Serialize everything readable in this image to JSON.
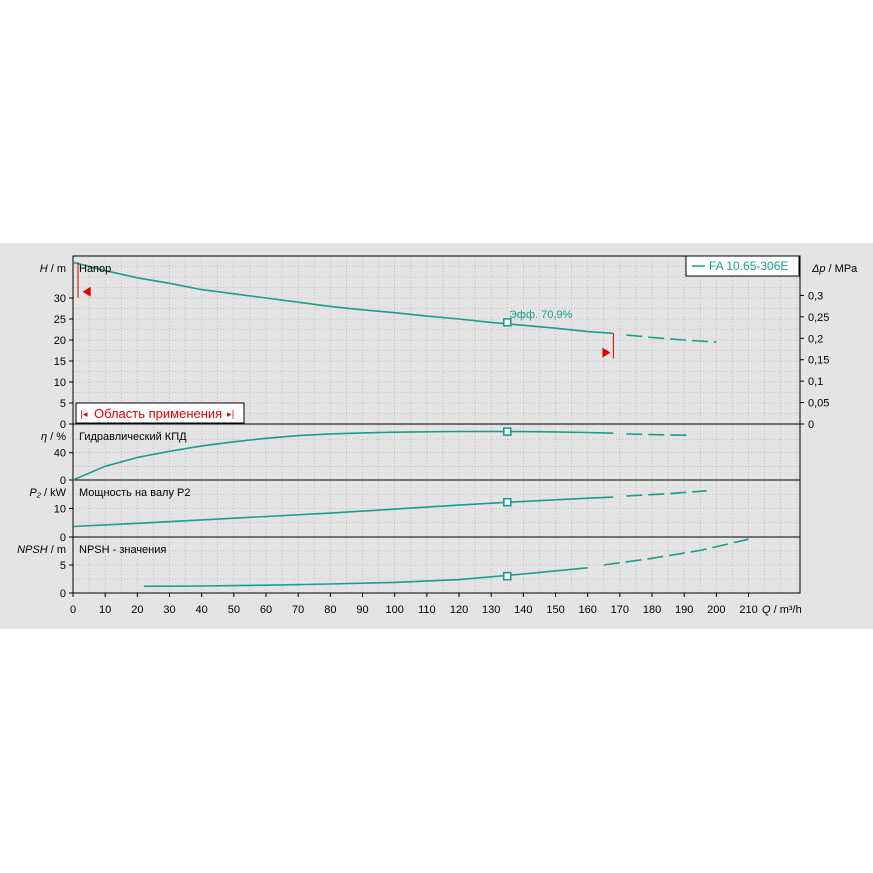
{
  "colors": {
    "curve": "#1a9e8c",
    "marker": "#e00000",
    "grid": "#aaaaaa",
    "panel": "#e4e4e4"
  },
  "legend": {
    "label": "FA 10.65-306E"
  },
  "application_range": {
    "label": "Область применения"
  },
  "efficiency_annotation": {
    "label": "Эфф.  70,9%"
  },
  "chart_data": [
    {
      "type": "line",
      "title": "Напор",
      "ylabel_symbol": "H",
      "ylabel_unit": "m",
      "y2label_symbol": "Δp",
      "y2label_unit": "MPa",
      "xlabel_symbol": "Q",
      "xlabel_unit": "m³/h",
      "ylim": [
        0,
        40
      ],
      "y2lim": [
        0,
        0.392
      ],
      "yticks": [
        0,
        5,
        10,
        15,
        20,
        25,
        30
      ],
      "y2ticks": [
        "0",
        "0,05",
        "0,1",
        "0,15",
        "0,2",
        "0,25",
        "0,3"
      ],
      "series": [
        {
          "name": "FA 10.65-306E",
          "style": "solid",
          "x": [
            0,
            10,
            20,
            30,
            40,
            50,
            60,
            70,
            80,
            90,
            100,
            110,
            120,
            130,
            140,
            150,
            160,
            168
          ],
          "values": [
            38.5,
            36.5,
            34.8,
            33.5,
            32.0,
            31.0,
            30.0,
            29.0,
            28.0,
            27.2,
            26.5,
            25.7,
            25.0,
            24.2,
            23.5,
            22.8,
            22.0,
            21.6
          ]
        },
        {
          "name": "FA 10.65-306E",
          "style": "dashed",
          "x": [
            172,
            180,
            190,
            200
          ],
          "values": [
            21.2,
            20.6,
            20.0,
            19.5
          ]
        }
      ],
      "duty_point": {
        "x": 135,
        "y": 24.2
      },
      "range_markers": [
        {
          "x": 3,
          "y": 31.5
        },
        {
          "x": 168,
          "y": 17
        }
      ]
    },
    {
      "type": "line",
      "title": "Гидравлический КПД",
      "ylabel_symbol": "η",
      "ylabel_unit": "%",
      "ylim": [
        0,
        82
      ],
      "yticks": [
        0,
        40
      ],
      "series": [
        {
          "style": "solid",
          "x": [
            0,
            10,
            20,
            30,
            40,
            50,
            60,
            70,
            80,
            90,
            100,
            110,
            120,
            130,
            140,
            150,
            160,
            168
          ],
          "values": [
            0,
            20,
            33,
            42,
            50,
            56,
            61,
            65,
            67.5,
            69,
            70,
            70.6,
            71,
            71,
            70.9,
            70.5,
            69.5,
            68.5
          ]
        },
        {
          "style": "dashed",
          "x": [
            172,
            180,
            192
          ],
          "values": [
            67.5,
            66.5,
            65.5
          ]
        }
      ],
      "duty_point": {
        "x": 135,
        "y": 70.9
      }
    },
    {
      "type": "line",
      "title": "Мощность на валу P2",
      "ylabel_symbol": "P₂",
      "ylabel_unit": "kW",
      "ylim": [
        0,
        20
      ],
      "yticks": [
        0,
        10
      ],
      "series": [
        {
          "style": "solid",
          "x": [
            0,
            20,
            40,
            60,
            80,
            100,
            120,
            140,
            160,
            168
          ],
          "values": [
            3.7,
            4.8,
            6.0,
            7.2,
            8.4,
            9.8,
            11.2,
            12.5,
            13.6,
            14.0
          ]
        },
        {
          "style": "dashed",
          "x": [
            172,
            185,
            197
          ],
          "values": [
            14.4,
            15.2,
            16.2
          ]
        }
      ],
      "duty_point": {
        "x": 135,
        "y": 12.2
      }
    },
    {
      "type": "line",
      "title": "NPSH - значения",
      "ylabel_symbol": "NPSH",
      "ylabel_unit": "m",
      "ylim": [
        0,
        10
      ],
      "yticks": [
        0,
        5
      ],
      "series": [
        {
          "style": "solid",
          "x": [
            22,
            40,
            60,
            80,
            100,
            120,
            140,
            160
          ],
          "values": [
            1.2,
            1.25,
            1.4,
            1.6,
            1.9,
            2.4,
            3.4,
            4.5
          ]
        },
        {
          "style": "dashed",
          "x": [
            165,
            180,
            195,
            210
          ],
          "values": [
            5.0,
            6.2,
            7.6,
            9.6
          ]
        }
      ],
      "duty_point": {
        "x": 135,
        "y": 3.0
      }
    }
  ],
  "x_axis": {
    "xlim": [
      0,
      226
    ],
    "ticks": [
      0,
      10,
      20,
      30,
      40,
      50,
      60,
      70,
      80,
      90,
      100,
      110,
      120,
      130,
      140,
      150,
      160,
      170,
      180,
      190,
      200,
      210
    ]
  }
}
